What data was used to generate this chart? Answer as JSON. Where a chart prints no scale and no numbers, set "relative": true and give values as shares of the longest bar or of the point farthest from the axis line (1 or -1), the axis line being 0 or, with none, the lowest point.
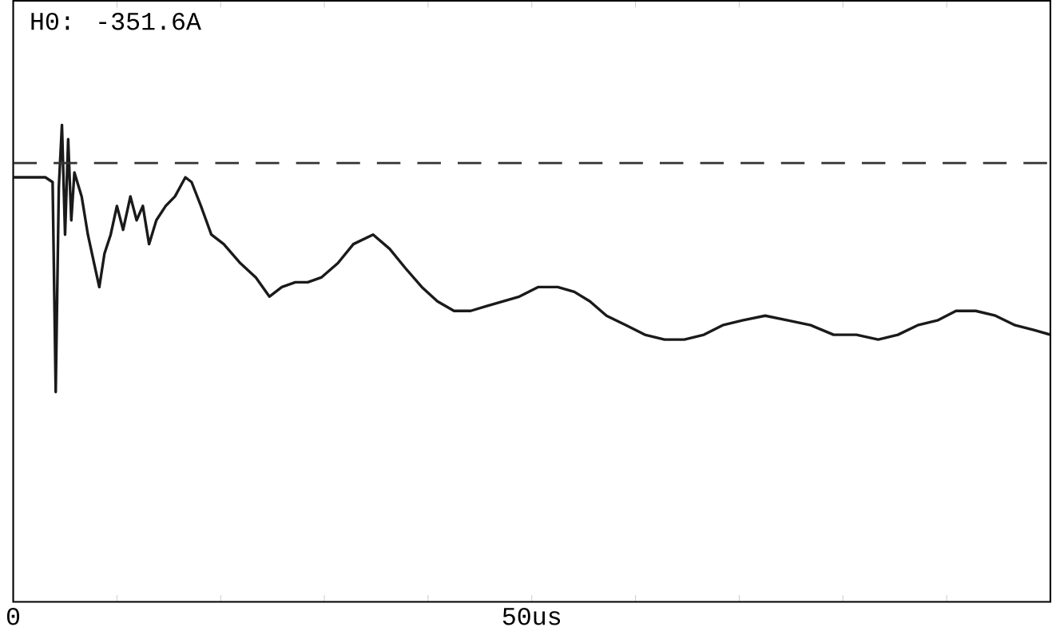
{
  "chart_data": {
    "type": "line",
    "relative": true,
    "annotations": [
      "H0: -351.6A"
    ],
    "xlim": [
      0,
      100
    ],
    "xticks": [
      {
        "value": 0,
        "label": "0"
      },
      {
        "value": 10,
        "label": null
      },
      {
        "value": 20,
        "label": null
      },
      {
        "value": 30,
        "label": null
      },
      {
        "value": 40,
        "label": null
      },
      {
        "value": 50,
        "label": "50us"
      },
      {
        "value": 60,
        "label": null
      },
      {
        "value": 70,
        "label": null
      },
      {
        "value": 80,
        "label": null
      },
      {
        "value": 90,
        "label": null
      },
      {
        "value": 100,
        "label": null
      }
    ],
    "tick_labels": "x",
    "grid": false,
    "line_style": "solid",
    "marker": "none",
    "ref_lines": [
      {
        "axis": "y",
        "value": 0.92,
        "line_style": "dashed",
        "color": "#333333"
      }
    ],
    "series": [
      {
        "color": "#1a1a1a",
        "x": [
          0,
          3.1,
          3.8,
          4.1,
          4.4,
          4.7,
          5.0,
          5.3,
          5.6,
          5.9,
          6.6,
          7.2,
          7.8,
          8.3,
          8.8,
          9.4,
          10.0,
          10.6,
          11.3,
          11.9,
          12.5,
          13.1,
          13.8,
          14.7,
          15.6,
          16.6,
          17.2,
          18.1,
          19.1,
          20.3,
          21.9,
          23.4,
          24.7,
          25.9,
          27.2,
          28.4,
          29.7,
          31.3,
          32.8,
          34.7,
          36.3,
          37.8,
          39.4,
          40.9,
          42.5,
          44.1,
          45.6,
          47.2,
          48.8,
          50.6,
          52.5,
          54.1,
          55.6,
          57.2,
          59.1,
          60.9,
          62.8,
          64.7,
          66.6,
          68.4,
          70.3,
          72.5,
          74.7,
          76.9,
          79.1,
          81.3,
          83.4,
          85.3,
          87.2,
          89.1,
          90.9,
          92.8,
          94.7,
          96.6,
          98.4,
          100
        ],
        "values": [
          0.89,
          0.89,
          0.88,
          0.44,
          0.87,
          1.0,
          0.77,
          0.97,
          0.8,
          0.9,
          0.85,
          0.77,
          0.71,
          0.66,
          0.73,
          0.77,
          0.83,
          0.78,
          0.85,
          0.8,
          0.83,
          0.75,
          0.8,
          0.83,
          0.85,
          0.89,
          0.88,
          0.83,
          0.77,
          0.75,
          0.71,
          0.68,
          0.64,
          0.66,
          0.67,
          0.67,
          0.68,
          0.71,
          0.75,
          0.77,
          0.74,
          0.7,
          0.66,
          0.63,
          0.61,
          0.61,
          0.62,
          0.63,
          0.64,
          0.66,
          0.66,
          0.65,
          0.63,
          0.6,
          0.58,
          0.56,
          0.55,
          0.55,
          0.56,
          0.58,
          0.59,
          0.6,
          0.59,
          0.58,
          0.56,
          0.56,
          0.55,
          0.56,
          0.58,
          0.59,
          0.61,
          0.61,
          0.6,
          0.58,
          0.57,
          0.56
        ]
      }
    ]
  }
}
